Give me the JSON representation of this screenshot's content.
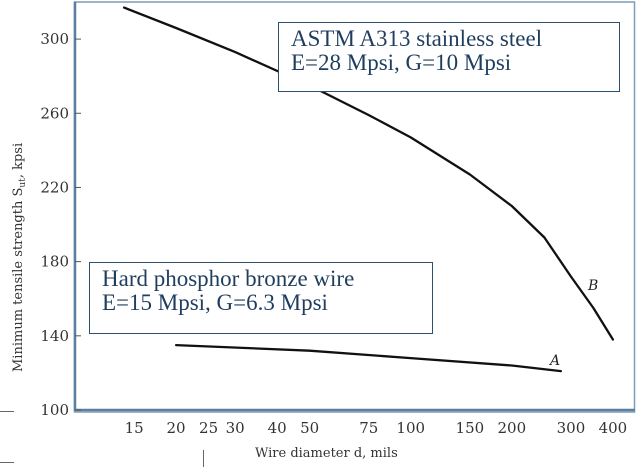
{
  "chart_data": {
    "type": "line",
    "xlabel": "Wire diameter d, mils",
    "ylabel": "Minimum tensile strength Sut, kpsi",
    "x_scale": "log",
    "y_ticks": [
      "100",
      "140",
      "180",
      "220",
      "260",
      "300"
    ],
    "x_ticks": [
      "15",
      "20",
      "25",
      "30",
      "40",
      "50",
      "75",
      "100",
      "150",
      "200",
      "300",
      "400"
    ],
    "ylim": [
      100,
      320
    ],
    "xlim": [
      10,
      420
    ],
    "series": [
      {
        "name": "B",
        "x": [
          14,
          20,
          30,
          50,
          75,
          100,
          150,
          200,
          250,
          300,
          350,
          400
        ],
        "y": [
          317,
          306,
          293,
          275,
          259,
          247,
          227,
          210,
          193,
          172,
          155,
          138
        ]
      },
      {
        "name": "A",
        "x": [
          20,
          50,
          100,
          200,
          280
        ],
        "y": [
          135,
          132,
          128,
          124,
          121
        ]
      }
    ],
    "annotations": [
      {
        "label": "ASTM A313 stainless steel",
        "line2": "E=28 Mpsi, G=10 Mpsi"
      },
      {
        "label": "Hard phosphor bronze wire",
        "line2": "E=15 Mpsi, G=6.3 Mpsi"
      }
    ],
    "grid": false
  },
  "labels": {
    "xlabel": "Wire diameter d, mils",
    "ylabel_main": "Minimum tensile strength S",
    "ylabel_sub": "ut",
    "ylabel_unit": ", kpsi",
    "curve_b": "B",
    "curve_a": "A"
  },
  "boxes": {
    "steel_line1": "ASTM A313 stainless steel",
    "steel_line2": "E=28 Mpsi, G=10 Mpsi",
    "bronze_line1": "Hard phosphor bronze wire",
    "bronze_line2": "E=15 Mpsi, G=6.3 Mpsi"
  },
  "colors": {
    "curve": "#111111",
    "axis": "#5a7fa0",
    "box_border": "#2e4f6e",
    "box_text": "#1f3d5e"
  }
}
